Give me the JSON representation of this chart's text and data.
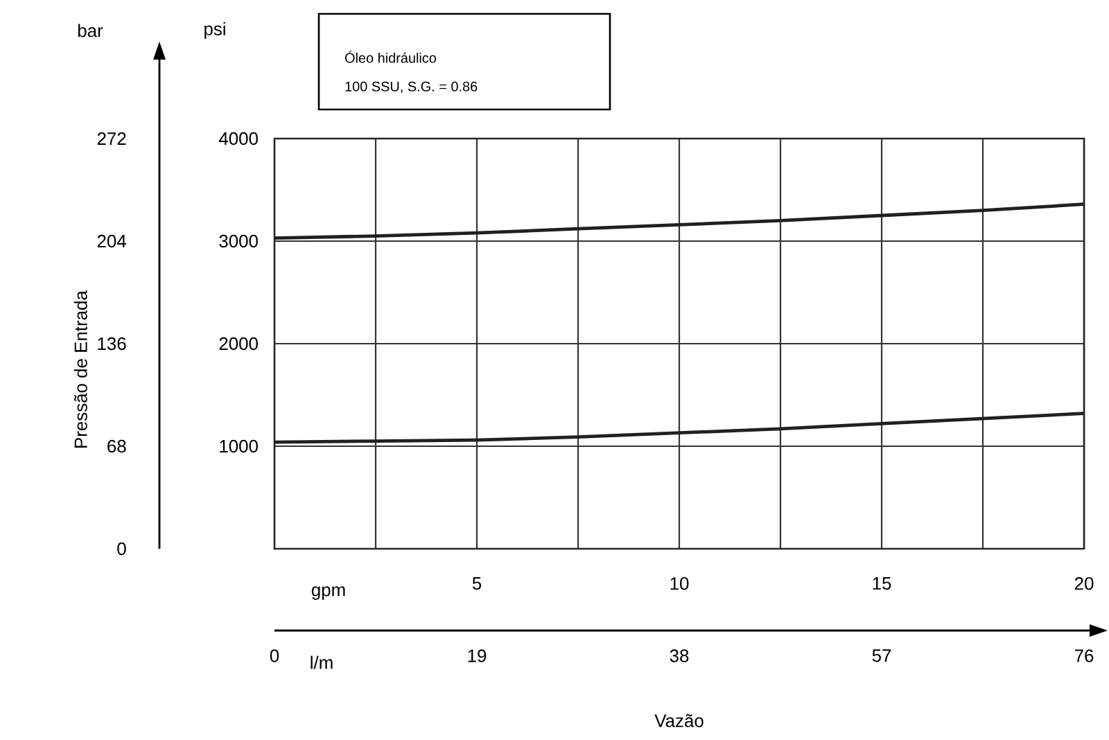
{
  "chart_data": {
    "type": "line",
    "xlabel": "Vazão",
    "y2label": "Pressão de Entrada",
    "x": [
      0,
      2.5,
      5,
      7.5,
      10,
      12.5,
      15,
      17.5,
      20
    ],
    "series": [
      {
        "color": "#231f20",
        "values": [
          3030,
          3050,
          3080,
          3120,
          3160,
          3200,
          3250,
          3300,
          3360
        ]
      },
      {
        "color": "#231f20",
        "values": [
          1040,
          1050,
          1060,
          1090,
          1130,
          1170,
          1220,
          1270,
          1320
        ]
      }
    ],
    "xlim": [
      0,
      20
    ],
    "xticks": [
      {
        "value": 2.5,
        "label": null
      },
      5,
      {
        "value": 7.5,
        "label": null
      },
      10,
      {
        "value": 12.5,
        "label": null
      },
      15,
      {
        "value": 17.5,
        "label": null
      },
      20
    ],
    "ylim": [
      0,
      4000
    ],
    "yticks": [
      1000,
      2000,
      3000,
      4000
    ],
    "y2lim": [
      0,
      272
    ],
    "y2ticks": [
      0,
      68,
      136,
      204,
      272
    ],
    "x2lim": [
      0,
      76
    ],
    "x2ticks": [
      0,
      19,
      38,
      57,
      76
    ],
    "grid": true,
    "marker": "none",
    "line_style": "solid",
    "annotations": [
      "Óleo hidráulico",
      "100 SSU, S.G. = 0.86",
      "bar",
      "psi",
      "gpm",
      "l/m"
    ]
  }
}
